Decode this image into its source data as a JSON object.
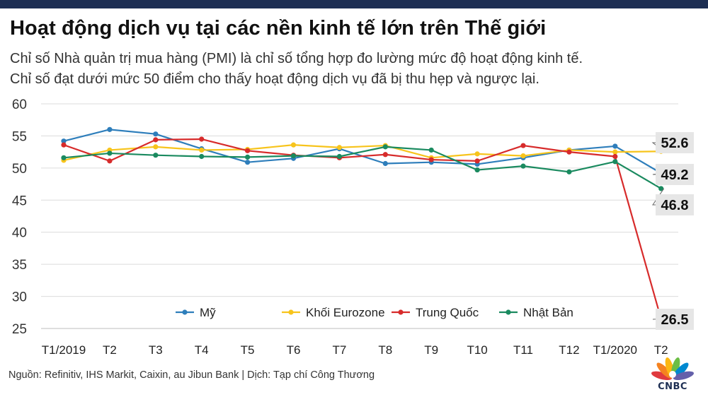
{
  "header": {
    "title": "Hoạt động dịch vụ tại các nền kinh tế lớn trên Thế giới",
    "subtitle_line1": "Chỉ số Nhà quản trị mua hàng (PMI) là chỉ số tổng hợp đo lường mức độ hoạt động kinh tế.",
    "subtitle_line2": "Chỉ số đạt dưới mức 50 điểm cho thấy hoạt động dịch vụ đã bị thu hẹp và ngược lại."
  },
  "footer": {
    "source": "Nguồn: Refinitiv, IHS Markit, Caixin, au Jibun Bank | Dịch: Tạp chí Công Thương",
    "logo_text": "CNBC"
  },
  "chart_data": {
    "type": "line",
    "categories": [
      "T1/2019",
      "T2",
      "T3",
      "T4",
      "T5",
      "T6",
      "T7",
      "T8",
      "T9",
      "T10",
      "T11",
      "T12",
      "T1/2020",
      "T2"
    ],
    "ylim": [
      25,
      60
    ],
    "yticks": [
      25,
      30,
      35,
      40,
      45,
      50,
      55,
      60
    ],
    "grid": "horizontal",
    "legend_position": "bottom",
    "series": [
      {
        "name": "Mỹ",
        "color": "#2e7ebb",
        "values": [
          54.2,
          56.0,
          55.3,
          53.0,
          50.9,
          51.5,
          53.0,
          50.7,
          50.9,
          50.6,
          51.6,
          52.8,
          53.4,
          49.2
        ]
      },
      {
        "name": "Khối Eurozone",
        "color": "#f7c41c",
        "values": [
          51.2,
          52.8,
          53.3,
          52.8,
          52.9,
          53.6,
          53.2,
          53.5,
          51.6,
          52.2,
          51.9,
          52.8,
          52.5,
          52.6
        ]
      },
      {
        "name": "Trung Quốc",
        "color": "#d72b2b",
        "values": [
          53.6,
          51.1,
          54.4,
          54.5,
          52.7,
          52.0,
          51.6,
          52.1,
          51.3,
          51.1,
          53.5,
          52.5,
          51.8,
          26.5
        ]
      },
      {
        "name": "Nhật Bản",
        "color": "#1a8a5f",
        "values": [
          51.6,
          52.3,
          52.0,
          51.8,
          51.7,
          51.9,
          51.8,
          53.3,
          52.8,
          49.7,
          50.3,
          49.4,
          51.0,
          46.8
        ]
      }
    ],
    "end_labels": [
      "52.6",
      "49.2",
      "46.8",
      "26.5"
    ]
  }
}
